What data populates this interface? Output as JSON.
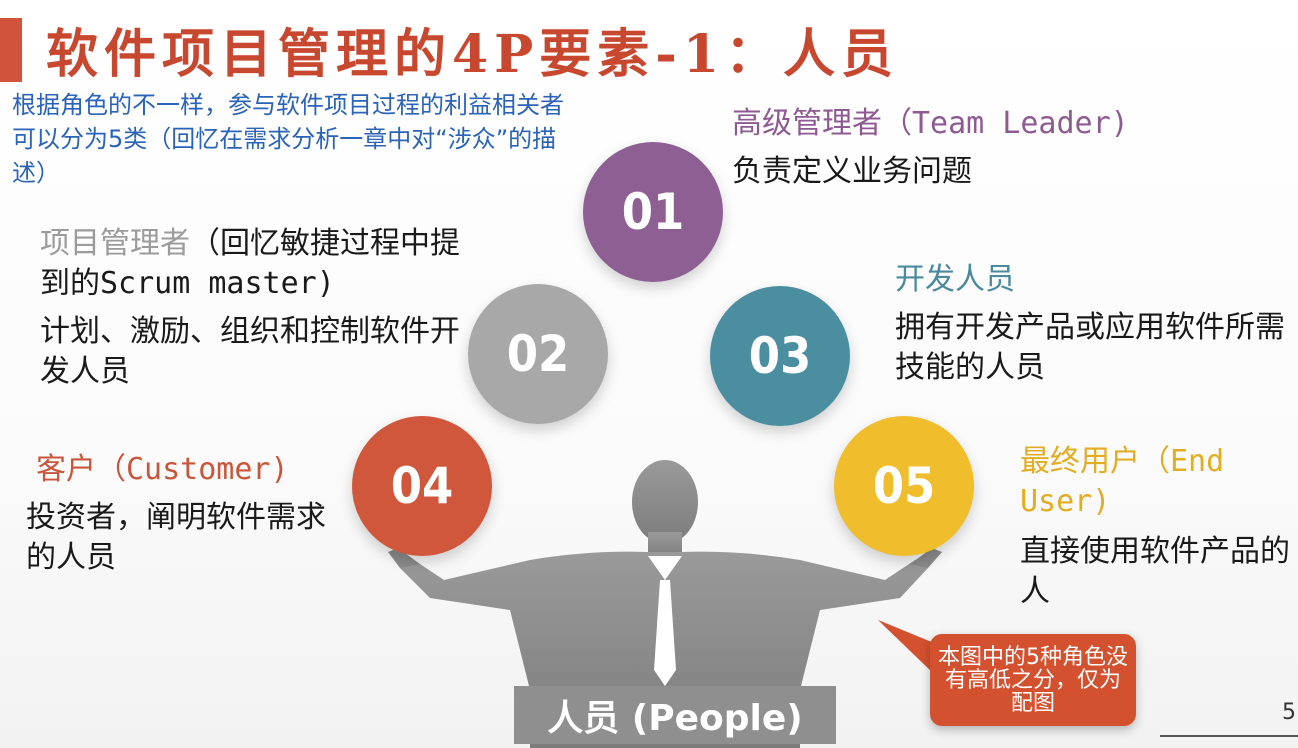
{
  "title": "软件项目管理的4P要素-1：人员",
  "intro": "根据角色的不一样，参与软件项目过程的利益相关者可以分为5类（回忆在需求分析一章中对“涉众”的描述）",
  "roles": [
    {
      "num": "01",
      "role": "高级管理者（Team Leader)",
      "desc": "负责定义业务问题",
      "color": "#8e5f92"
    },
    {
      "num": "02",
      "role_gray": "项目管理者",
      "role_rest": "（回忆敏捷过程中提到的Scrum master)",
      "desc": "计划、激励、组织和控制软件开发人员",
      "color": "#a8a8a8"
    },
    {
      "num": "03",
      "role": "开发人员",
      "desc": "拥有开发产品或应用软件所需技能的人员",
      "color": "#4a8ea0"
    },
    {
      "num": "04",
      "role": "客户（Customer)",
      "desc": "投资者，阐明软件需求的人员",
      "color": "#d1573c"
    },
    {
      "num": "05",
      "role": "最终用户（End User)",
      "desc": "直接使用软件产品的人",
      "color": "#f0bd2c"
    }
  ],
  "people_label": "人员 (People)",
  "callout": "本图中的5种角色没有高低之分，仅为配图",
  "page_number": "5"
}
